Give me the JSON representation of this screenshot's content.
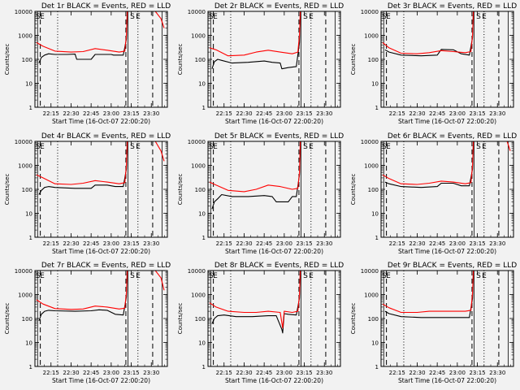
{
  "figure": {
    "shared": {
      "ylabel": "Counts/sec",
      "xlabel": "Start Time (16-Oct-07 22:00:20)",
      "xticks": [
        "22:15",
        "22:30",
        "22:45",
        "23:00",
        "23:15",
        "23:30"
      ],
      "yticks": [
        "1",
        "10",
        "100",
        "1000",
        "10000"
      ],
      "flags": [
        "S",
        "E",
        "S",
        "E"
      ]
    }
  },
  "chart_data": [
    {
      "type": "line",
      "title": "Det 1r BLACK = Events, RED = LLD",
      "ylabel": "Counts/sec",
      "xlabel": "Start Time (16-Oct-07 22:00:20)",
      "xlim": [
        22.05,
        23.7
      ],
      "ylim": [
        1,
        10000
      ],
      "yscale": "log",
      "colors": {
        "events": "#000000",
        "lld": "#ff0000"
      },
      "solid_markers": [
        22.083,
        23.208,
        23.633
      ],
      "dashed_markers": [
        22.117,
        23.183,
        23.517
      ],
      "dotted_markers": [
        22.333,
        23.333
      ],
      "series": [
        {
          "name": "Events",
          "x": [
            22.1,
            22.13,
            22.17,
            22.22,
            22.3,
            22.45,
            22.55,
            22.57,
            22.75,
            22.8,
            23.0,
            23.03,
            23.15,
            23.19,
            23.2
          ],
          "y": [
            70,
            120,
            150,
            170,
            160,
            160,
            165,
            100,
            100,
            160,
            160,
            150,
            150,
            700,
            8000
          ]
        },
        {
          "name": "LLD",
          "x": [
            22.07,
            22.15,
            22.3,
            22.5,
            22.65,
            22.8,
            22.95,
            23.1,
            23.17,
            23.19,
            23.2,
            23.35,
            23.45,
            23.55,
            23.62,
            23.66
          ],
          "y": [
            500,
            350,
            220,
            200,
            210,
            280,
            240,
            200,
            220,
            1000,
            10000,
            10000,
            10000,
            10000,
            5000,
            2000
          ]
        }
      ]
    },
    {
      "type": "line",
      "title": "Det 2r BLACK = Events, RED = LLD",
      "ylabel": "Counts/sec",
      "xlabel": "Start Time (16-Oct-07 22:00:20)",
      "xlim": [
        22.05,
        23.7
      ],
      "ylim": [
        1,
        10000
      ],
      "yscale": "log",
      "colors": {
        "events": "#000000",
        "lld": "#ff0000"
      },
      "solid_markers": [
        22.083,
        23.208,
        23.633
      ],
      "dashed_markers": [
        22.117,
        23.183,
        23.517
      ],
      "dotted_markers": [
        22.333,
        23.333
      ],
      "series": [
        {
          "name": "Events",
          "x": [
            22.1,
            22.13,
            22.17,
            22.22,
            22.35,
            22.55,
            22.75,
            22.85,
            22.95,
            22.97,
            23.05,
            23.15,
            23.19,
            23.2
          ],
          "y": [
            40,
            80,
            100,
            90,
            70,
            75,
            85,
            75,
            70,
            40,
            45,
            50,
            500,
            7000
          ]
        },
        {
          "name": "LLD",
          "x": [
            22.07,
            22.15,
            22.3,
            22.5,
            22.65,
            22.8,
            22.95,
            23.1,
            23.17,
            23.19,
            23.2,
            23.35,
            23.45,
            23.55,
            23.62
          ],
          "y": [
            300,
            250,
            140,
            150,
            200,
            240,
            200,
            170,
            200,
            1000,
            10000,
            10000,
            10000,
            10000,
            10000
          ]
        }
      ]
    },
    {
      "type": "line",
      "title": "Det 3r BLACK = Events, RED = LLD",
      "ylabel": "Counts/sec",
      "xlabel": "Start Time (16-Oct-07 22:00:20)",
      "xlim": [
        22.05,
        23.7
      ],
      "ylim": [
        1,
        10000
      ],
      "yscale": "log",
      "colors": {
        "events": "#000000",
        "lld": "#ff0000"
      },
      "solid_markers": [
        22.083,
        23.208,
        23.633
      ],
      "dashed_markers": [
        22.117,
        23.183,
        23.517
      ],
      "dotted_markers": [
        22.333,
        23.333
      ],
      "series": [
        {
          "name": "Events",
          "x": [
            22.1,
            22.15,
            22.3,
            22.55,
            22.75,
            22.8,
            22.95,
            23.05,
            23.15,
            23.19,
            23.2
          ],
          "y": [
            250,
            200,
            150,
            140,
            150,
            260,
            250,
            170,
            150,
            800,
            10000
          ]
        },
        {
          "name": "LLD",
          "x": [
            22.07,
            22.15,
            22.3,
            22.5,
            22.65,
            22.8,
            22.95,
            23.1,
            23.17,
            23.19,
            23.2,
            23.35,
            23.45,
            23.55,
            23.62
          ],
          "y": [
            500,
            300,
            180,
            170,
            190,
            230,
            210,
            190,
            210,
            1000,
            10000,
            10000,
            10000,
            10000,
            10000
          ]
        }
      ]
    },
    {
      "type": "line",
      "title": "Det 4r BLACK = Events, RED = LLD",
      "ylabel": "Counts/sec",
      "xlabel": "Start Time (16-Oct-07 22:00:20)",
      "xlim": [
        22.05,
        23.7
      ],
      "ylim": [
        1,
        10000
      ],
      "yscale": "log",
      "colors": {
        "events": "#000000",
        "lld": "#ff0000"
      },
      "solid_markers": [
        22.083,
        23.208,
        23.633
      ],
      "dashed_markers": [
        22.117,
        23.183,
        23.517
      ],
      "dotted_markers": [
        22.333,
        23.333
      ],
      "series": [
        {
          "name": "Events",
          "x": [
            22.1,
            22.13,
            22.17,
            22.22,
            22.3,
            22.55,
            22.75,
            22.8,
            22.95,
            23.05,
            23.15,
            23.19,
            23.2
          ],
          "y": [
            60,
            90,
            120,
            130,
            120,
            110,
            110,
            150,
            150,
            130,
            130,
            700,
            8000
          ]
        },
        {
          "name": "LLD",
          "x": [
            22.07,
            22.15,
            22.3,
            22.5,
            22.65,
            22.8,
            22.95,
            23.1,
            23.17,
            23.19,
            23.2,
            23.35,
            23.45,
            23.55,
            23.62,
            23.66
          ],
          "y": [
            400,
            300,
            170,
            160,
            180,
            230,
            200,
            170,
            190,
            1000,
            10000,
            10000,
            10000,
            10000,
            4000,
            1500
          ]
        }
      ]
    },
    {
      "type": "line",
      "title": "Det 5r BLACK = Events, RED = LLD",
      "ylabel": "Counts/sec",
      "xlabel": "Start Time (16-Oct-07 22:00:20)",
      "xlim": [
        22.05,
        23.7
      ],
      "ylim": [
        1,
        10000
      ],
      "yscale": "log",
      "colors": {
        "events": "#000000",
        "lld": "#ff0000"
      },
      "solid_markers": [
        22.083,
        23.208,
        23.633
      ],
      "dashed_markers": [
        22.117,
        23.183,
        23.517
      ],
      "dotted_markers": [
        22.333,
        23.333
      ],
      "series": [
        {
          "name": "Events",
          "x": [
            22.1,
            22.13,
            22.17,
            22.22,
            22.35,
            22.55,
            22.75,
            22.85,
            22.9,
            23.05,
            23.1,
            23.15,
            23.19,
            23.2
          ],
          "y": [
            15,
            30,
            40,
            60,
            50,
            50,
            55,
            50,
            30,
            30,
            50,
            50,
            400,
            6000
          ]
        },
        {
          "name": "LLD",
          "x": [
            22.07,
            22.15,
            22.3,
            22.5,
            22.65,
            22.8,
            22.95,
            23.1,
            23.17,
            23.19,
            23.2,
            23.35,
            23.45,
            23.55,
            23.62
          ],
          "y": [
            200,
            150,
            90,
            80,
            100,
            150,
            130,
            100,
            110,
            500,
            10000,
            10000,
            10000,
            10000,
            10000
          ]
        }
      ]
    },
    {
      "type": "line",
      "title": "Det 6r BLACK = Events, RED = LLD",
      "ylabel": "Counts/sec",
      "xlabel": "Start Time (16-Oct-07 22:00:20)",
      "xlim": [
        22.05,
        23.7
      ],
      "ylim": [
        1,
        10000
      ],
      "yscale": "log",
      "colors": {
        "events": "#000000",
        "lld": "#ff0000"
      },
      "solid_markers": [
        22.083,
        23.208,
        23.633
      ],
      "dashed_markers": [
        22.117,
        23.183,
        23.517
      ],
      "dotted_markers": [
        22.333,
        23.333
      ],
      "series": [
        {
          "name": "Events",
          "x": [
            22.1,
            22.15,
            22.3,
            22.55,
            22.75,
            22.8,
            22.95,
            23.05,
            23.15,
            23.19,
            23.2
          ],
          "y": [
            200,
            170,
            130,
            120,
            130,
            180,
            180,
            140,
            140,
            700,
            9000
          ]
        },
        {
          "name": "LLD",
          "x": [
            22.07,
            22.15,
            22.3,
            22.5,
            22.65,
            22.8,
            22.95,
            23.1,
            23.17,
            23.19,
            23.2,
            23.35,
            23.45,
            23.55,
            23.62,
            23.66
          ],
          "y": [
            400,
            280,
            170,
            160,
            180,
            220,
            200,
            170,
            190,
            1000,
            10000,
            10000,
            10000,
            10000,
            10000,
            4000
          ]
        }
      ]
    },
    {
      "type": "line",
      "title": "Det 7r BLACK = Events, RED = LLD",
      "ylabel": "Counts/sec",
      "xlabel": "Start Time (16-Oct-07 22:00:20)",
      "xlim": [
        22.05,
        23.7
      ],
      "ylim": [
        1,
        10000
      ],
      "yscale": "log",
      "colors": {
        "events": "#000000",
        "lld": "#ff0000"
      },
      "solid_markers": [
        22.083,
        23.208,
        23.633
      ],
      "dashed_markers": [
        22.117,
        23.183,
        23.517
      ],
      "dotted_markers": [
        22.333,
        23.333
      ],
      "series": [
        {
          "name": "Events",
          "x": [
            22.1,
            22.13,
            22.17,
            22.22,
            22.3,
            22.55,
            22.75,
            22.85,
            22.95,
            23.05,
            23.15,
            23.19,
            23.2
          ],
          "y": [
            80,
            150,
            200,
            220,
            210,
            200,
            210,
            230,
            220,
            150,
            140,
            800,
            9000
          ]
        },
        {
          "name": "LLD",
          "x": [
            22.07,
            22.15,
            22.3,
            22.5,
            22.65,
            22.8,
            22.95,
            23.1,
            23.17,
            23.19,
            23.2,
            23.35,
            23.45,
            23.55,
            23.62,
            23.66
          ],
          "y": [
            600,
            400,
            260,
            240,
            250,
            330,
            300,
            250,
            270,
            1200,
            10000,
            10000,
            10000,
            10000,
            5000,
            1500
          ]
        }
      ]
    },
    {
      "type": "line",
      "title": "Det 8r BLACK = Events, RED = LLD",
      "ylabel": "Counts/sec",
      "xlabel": "Start Time (16-Oct-07 22:00:20)",
      "xlim": [
        22.05,
        23.7
      ],
      "ylim": [
        1,
        10000
      ],
      "yscale": "log",
      "colors": {
        "events": "#000000",
        "lld": "#ff0000"
      },
      "solid_markers": [
        22.083,
        23.208,
        23.633
      ],
      "dashed_markers": [
        22.117,
        23.183,
        23.517
      ],
      "dotted_markers": [
        22.333,
        23.333
      ],
      "series": [
        {
          "name": "Events",
          "x": [
            22.1,
            22.13,
            22.17,
            22.25,
            22.4,
            22.6,
            22.8,
            22.9,
            22.97,
            22.98,
            23.0,
            23.05,
            23.15,
            23.19,
            23.2
          ],
          "y": [
            60,
            100,
            130,
            140,
            120,
            120,
            130,
            130,
            35,
            25,
            160,
            150,
            140,
            700,
            9000
          ]
        },
        {
          "name": "LLD",
          "x": [
            22.07,
            22.15,
            22.3,
            22.5,
            22.65,
            22.8,
            22.95,
            22.98,
            23.0,
            23.1,
            23.17,
            23.19,
            23.2,
            23.35,
            23.45,
            23.55,
            23.62
          ],
          "y": [
            450,
            300,
            200,
            180,
            180,
            200,
            180,
            40,
            200,
            180,
            200,
            1000,
            10000,
            10000,
            10000,
            10000,
            10000
          ]
        }
      ]
    },
    {
      "type": "line",
      "title": "Det 9r BLACK = Events, RED = LLD",
      "ylabel": "Counts/sec",
      "xlabel": "Start Time (16-Oct-07 22:00:20)",
      "xlim": [
        22.05,
        23.7
      ],
      "ylim": [
        1,
        10000
      ],
      "yscale": "log",
      "colors": {
        "events": "#000000",
        "lld": "#ff0000"
      },
      "solid_markers": [
        22.083,
        23.208,
        23.633
      ],
      "dashed_markers": [
        22.117,
        23.183,
        23.517
      ],
      "dotted_markers": [
        22.333,
        23.333
      ],
      "series": [
        {
          "name": "Events",
          "x": [
            22.1,
            22.15,
            22.3,
            22.55,
            22.75,
            22.8,
            22.95,
            23.05,
            23.15,
            23.19,
            23.2
          ],
          "y": [
            200,
            160,
            120,
            110,
            110,
            110,
            110,
            110,
            110,
            700,
            9000
          ]
        },
        {
          "name": "LLD",
          "x": [
            22.07,
            22.15,
            22.3,
            22.5,
            22.65,
            22.8,
            22.95,
            23.1,
            23.17,
            23.19,
            23.2,
            23.35,
            23.45,
            23.55,
            23.62
          ],
          "y": [
            400,
            280,
            180,
            180,
            200,
            200,
            200,
            200,
            220,
            1200,
            10000,
            10000,
            10000,
            10000,
            10000
          ]
        }
      ]
    }
  ]
}
